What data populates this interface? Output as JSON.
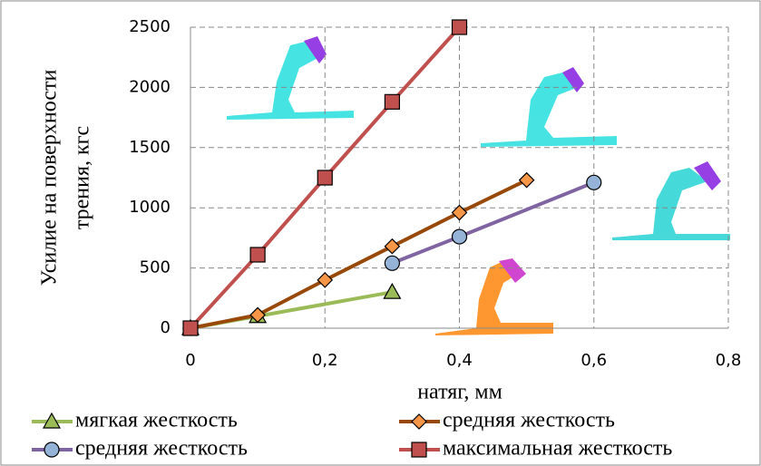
{
  "chart_data": {
    "type": "line",
    "y_label": [
      "Усилие на поверхности",
      "трения, кгс"
    ],
    "x_label": "натяг, мм",
    "xlim": [
      0,
      0.8
    ],
    "xticks": [
      0,
      {
        "value": 0.2,
        "label": "0,2"
      },
      {
        "value": 0.4,
        "label": "0,4"
      },
      {
        "value": 0.6,
        "label": "0,6"
      },
      {
        "value": 0.8,
        "label": "0,8"
      }
    ],
    "ylim": [
      0,
      2500
    ],
    "yticks": [
      0,
      500,
      1000,
      1500,
      2000,
      2500
    ],
    "grid": true,
    "legend": "bottom",
    "series": [
      {
        "name": "мягкая жесткость",
        "color": "#9bbb59",
        "marker": "triangle",
        "x": [
          0,
          0.1,
          0.3
        ],
        "values": [
          0,
          100,
          300
        ]
      },
      {
        "name": "средняя жесткость",
        "color": "#984807",
        "marker_color": "#f79646",
        "marker": "diamond",
        "x": [
          0,
          0.1,
          0.2,
          0.3,
          0.4,
          0.5
        ],
        "values": [
          0,
          110,
          400,
          680,
          960,
          1230
        ]
      },
      {
        "name": "средняя жесткость",
        "color": "#8064a2",
        "marker_color": "#95b3d7",
        "marker": "circle",
        "x": [
          0.3,
          0.4,
          0.6
        ],
        "values": [
          540,
          760,
          1210
        ]
      },
      {
        "name": "максимальная жесткость",
        "color": "#c0504d",
        "marker_color": "#c0504d",
        "marker": "square",
        "x": [
          0,
          0.1,
          0.2,
          0.3,
          0.4
        ],
        "values": [
          0,
          610,
          1250,
          1880,
          2500
        ]
      }
    ]
  }
}
